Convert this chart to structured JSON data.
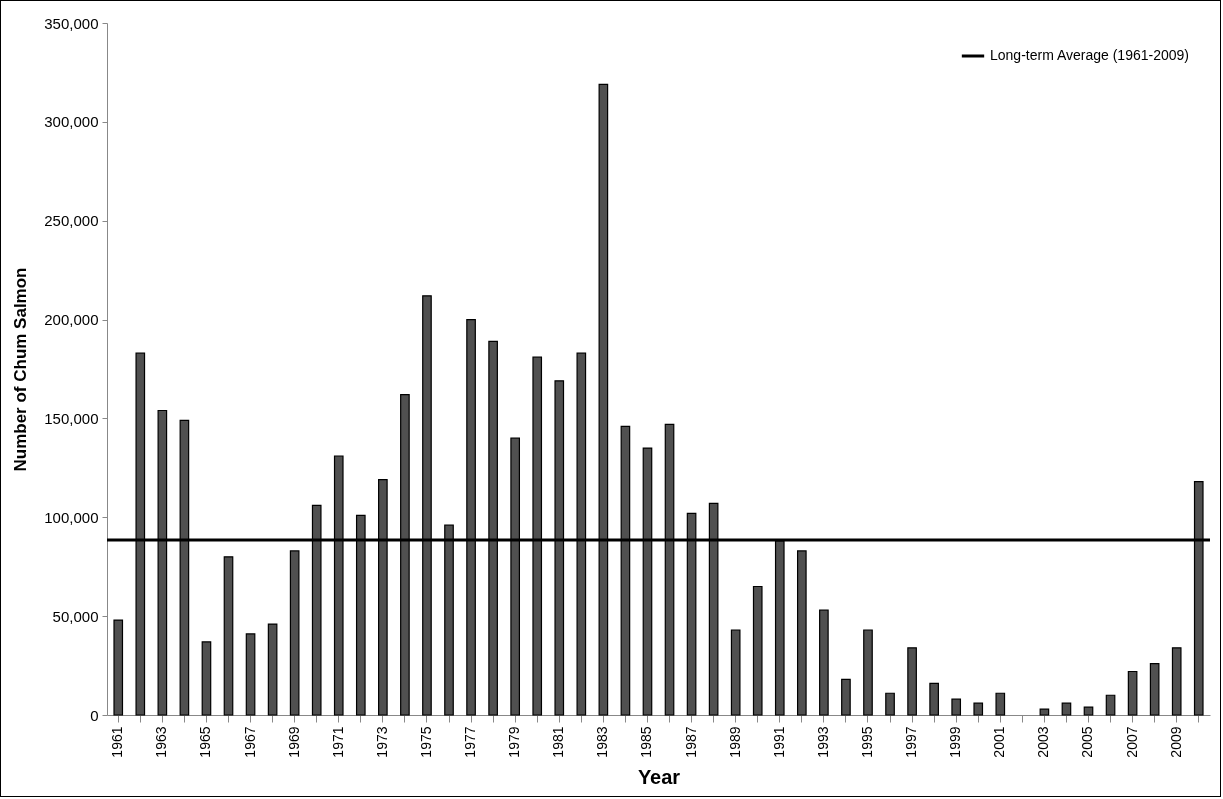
{
  "chart_data": {
    "type": "bar",
    "xlabel": "Year",
    "ylabel": "Number of Chum  Salmon",
    "categories": [
      "1961",
      null,
      "1963",
      null,
      "1965",
      null,
      "1967",
      null,
      "1969",
      null,
      "1971",
      null,
      "1973",
      null,
      "1975",
      null,
      "1977",
      null,
      "1979",
      null,
      "1981",
      null,
      "1983",
      null,
      "1985",
      null,
      "1987",
      null,
      "1989",
      null,
      "1991",
      null,
      "1993",
      null,
      "1995",
      null,
      "1997",
      null,
      "1999",
      null,
      "2001",
      null,
      "2003",
      null,
      "2005",
      null,
      "2007",
      null,
      "2009",
      null
    ],
    "series": [
      {
        "color": "#505050",
        "values": [
          48000,
          183000,
          154000,
          149000,
          37000,
          80000,
          41000,
          46000,
          83000,
          106000,
          131000,
          101000,
          119000,
          162000,
          212000,
          96000,
          200000,
          189000,
          140000,
          181000,
          169000,
          183000,
          319000,
          146000,
          135000,
          147000,
          102000,
          107000,
          43000,
          65000,
          88000,
          83000,
          53000,
          18000,
          43000,
          11000,
          34000,
          16000,
          8000,
          6000,
          11000,
          null,
          3000,
          6000,
          4000,
          10000,
          22000,
          26000,
          34000,
          118000
        ]
      }
    ],
    "ylim": [
      0,
      350000
    ],
    "yticks": [
      0,
      {
        "value": 50000,
        "label": "50,000"
      },
      {
        "value": 100000,
        "label": "100,000"
      },
      {
        "value": 150000,
        "label": "150,000"
      },
      {
        "value": 200000,
        "label": "200,000"
      },
      {
        "value": 250000,
        "label": "250,000"
      },
      {
        "value": 300000,
        "label": "300,000"
      },
      {
        "value": 350000,
        "label": "350,000"
      }
    ],
    "ref_lines": [
      {
        "axis": "y",
        "value": 88500,
        "label": "Long-term Average (1961-2009)",
        "color": "#000000"
      }
    ],
    "legend": "top right",
    "grid": false
  }
}
